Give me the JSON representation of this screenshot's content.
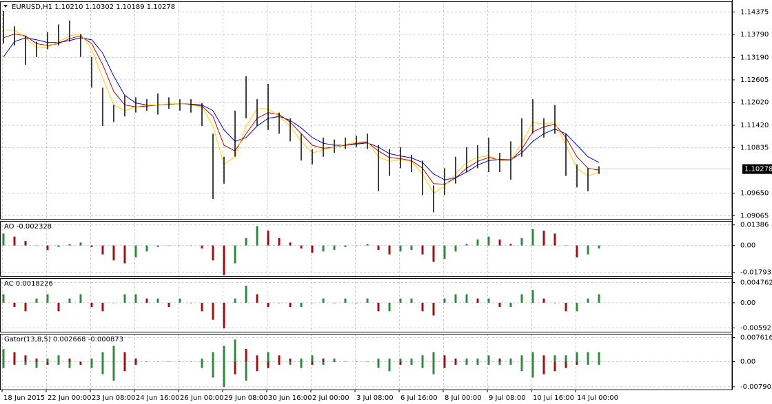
{
  "chart_data": [
    {
      "type": "ohlc",
      "title": "EURUSD,H1  1.10210 1.10302 1.10189 1.10278",
      "ylim": [
        1.0898,
        1.1465
      ],
      "yticks": [
        1.14375,
        {
          "value": 1.1379,
          "label": "1.13790"
        },
        {
          "value": 1.1319,
          "label": "1.13190"
        },
        1.12605,
        {
          "value": 1.1202,
          "label": "1.12020"
        },
        {
          "value": 1.1142,
          "label": "1.11420"
        },
        1.10835,
        {
          "value": 1.0965,
          "label": "1.09650"
        },
        1.09065
      ],
      "last": 1.10278,
      "grid": true,
      "color": "#000000",
      "categories": [
        "18 Jun 2015",
        "22 Jun 00:00",
        "23 Jun 08:00",
        "24 Jun 16:00",
        "26 Jun 00:00",
        "29 Jun 08:00",
        "30 Jun 16:00",
        "2 Jul 00:00",
        "3 Jul 08:00",
        "6 Jul 16:00",
        "8 Jul 00:00",
        "9 Jul 08:00",
        "10 Jul 16:00",
        "14 Jul 00:00"
      ],
      "high": [
        1.144,
        1.14,
        1.1375,
        1.136,
        1.1385,
        1.1405,
        1.1415,
        1.138,
        1.132,
        1.124,
        1.1195,
        1.122,
        1.1215,
        1.121,
        1.1225,
        1.1215,
        1.121,
        1.121,
        1.12,
        1.112,
        1.106,
        1.118,
        1.127,
        1.121,
        1.125,
        1.1175,
        1.116,
        1.112,
        1.108,
        1.111,
        1.1105,
        1.111,
        1.1115,
        1.112,
        1.109,
        1.108,
        1.1085,
        1.1065,
        1.105,
        1.0985,
        1.103,
        1.106,
        1.1085,
        1.109,
        1.111,
        1.107,
        1.11,
        1.116,
        1.121,
        1.116,
        1.1195,
        1.112,
        1.104,
        1.103,
        1.1035
      ],
      "low": [
        1.1355,
        1.135,
        1.13,
        1.132,
        1.134,
        1.135,
        1.136,
        1.132,
        1.124,
        1.114,
        1.115,
        1.1165,
        1.1175,
        1.118,
        1.117,
        1.1185,
        1.118,
        1.1175,
        1.114,
        1.095,
        1.099,
        1.106,
        1.116,
        1.114,
        1.113,
        1.112,
        1.11,
        1.105,
        1.104,
        1.106,
        1.107,
        1.108,
        1.1085,
        1.108,
        1.097,
        1.101,
        1.103,
        1.102,
        1.096,
        1.0915,
        1.096,
        1.099,
        1.102,
        1.103,
        1.102,
        1.102,
        1.1,
        1.106,
        1.112,
        1.111,
        1.112,
        1.101,
        1.098,
        1.097,
        1.1015
      ],
      "lines": [
        {
          "color": "#0000cc",
          "values": [
            1.132,
            1.136,
            1.137,
            1.1365,
            1.1358,
            1.1358,
            1.1363,
            1.137,
            1.1365,
            1.133,
            1.127,
            1.122,
            1.12,
            1.1195,
            1.1195,
            1.1197,
            1.1198,
            1.1197,
            1.1195,
            1.118,
            1.113,
            1.11,
            1.111,
            1.114,
            1.116,
            1.1165,
            1.1155,
            1.1135,
            1.111,
            1.1095,
            1.109,
            1.109,
            1.1093,
            1.1096,
            1.1085,
            1.1068,
            1.1062,
            1.1057,
            1.1045,
            1.1015,
            1.1,
            1.1005,
            1.102,
            1.1038,
            1.105,
            1.1053,
            1.1052,
            1.107,
            1.11,
            1.112,
            1.1132,
            1.112,
            1.109,
            1.106,
            1.1045
          ]
        },
        {
          "color": "#cc0000",
          "values": [
            1.137,
            1.138,
            1.1375,
            1.1355,
            1.135,
            1.1355,
            1.1368,
            1.1375,
            1.1355,
            1.13,
            1.123,
            1.1195,
            1.119,
            1.1192,
            1.1195,
            1.1197,
            1.1198,
            1.1196,
            1.1192,
            1.1165,
            1.109,
            1.1075,
            1.112,
            1.116,
            1.1175,
            1.117,
            1.115,
            1.112,
            1.109,
            1.1082,
            1.1085,
            1.109,
            1.1095,
            1.1098,
            1.1075,
            1.1058,
            1.1055,
            1.105,
            1.103,
            1.099,
            1.0988,
            1.1005,
            1.103,
            1.1048,
            1.1058,
            1.1052,
            1.105,
            1.108,
            1.1125,
            1.1138,
            1.1145,
            1.111,
            1.106,
            1.103,
            1.1025
          ]
        },
        {
          "color": "#ffd000",
          "values": [
            1.139,
            1.139,
            1.137,
            1.1345,
            1.1345,
            1.136,
            1.1375,
            1.138,
            1.134,
            1.1265,
            1.1195,
            1.118,
            1.119,
            1.1195,
            1.1195,
            1.1198,
            1.1198,
            1.1195,
            1.119,
            1.114,
            1.104,
            1.106,
            1.114,
            1.1185,
            1.1185,
            1.1165,
            1.114,
            1.11,
            1.107,
            1.1078,
            1.1085,
            1.1092,
            1.1098,
            1.11,
            1.106,
            1.1048,
            1.1052,
            1.1048,
            1.1015,
            1.0965,
            1.0985,
            1.1015,
            1.1045,
            1.1058,
            1.1063,
            1.105,
            1.105,
            1.1095,
            1.115,
            1.1145,
            1.115,
            1.109,
            1.103,
            1.101,
            1.102
          ]
        }
      ]
    },
    {
      "type": "histogram",
      "title": "AO -0.002328",
      "ylim": [
        -0.0205,
        0.0165
      ],
      "yticks": [
        0.01386,
        {
          "value": 0,
          "label": "0.00"
        },
        -0.01793
      ],
      "grid": true,
      "up_color": "#2e8b3e",
      "down_color": "#a01010",
      "values": [
        0.008,
        0.006,
        0.003,
        0.0,
        -0.003,
        -0.001,
        0.001,
        0.002,
        -0.001,
        -0.006,
        -0.01,
        -0.012,
        -0.008,
        -0.004,
        -0.001,
        0.0,
        0.0,
        0.0,
        -0.002,
        -0.01,
        -0.02,
        -0.012,
        0.005,
        0.013,
        0.01,
        0.005,
        0.002,
        -0.002,
        -0.005,
        -0.004,
        -0.003,
        -0.001,
        0.0,
        0.001,
        -0.003,
        -0.006,
        -0.004,
        -0.003,
        -0.006,
        -0.011,
        -0.009,
        -0.004,
        0.001,
        0.004,
        0.006,
        0.004,
        0.001,
        0.005,
        0.011,
        0.01,
        0.008,
        0.0,
        -0.008,
        -0.006,
        -0.002
      ]
    },
    {
      "type": "histogram",
      "title": "AC 0.0018226",
      "ylim": [
        -0.0068,
        0.0058
      ],
      "yticks": [
        0.004762,
        {
          "value": 0,
          "label": "0.00"
        },
        -0.00592
      ],
      "grid": true,
      "up_color": "#2e8b3e",
      "down_color": "#a01010",
      "values": [
        0.002,
        -0.001,
        -0.002,
        0.001,
        0.002,
        -0.002,
        0.001,
        0.002,
        -0.001,
        -0.002,
        0.0,
        0.002,
        0.002,
        0.001,
        0.001,
        -0.001,
        0.001,
        0.0,
        -0.002,
        -0.004,
        -0.006,
        0.001,
        0.004,
        0.002,
        -0.001,
        0.0,
        -0.001,
        -0.001,
        0.0,
        0.001,
        0.0,
        0.001,
        0.0,
        0.001,
        -0.002,
        -0.002,
        0.001,
        0.001,
        -0.002,
        -0.003,
        0.001,
        0.002,
        0.002,
        0.001,
        0.001,
        -0.001,
        -0.001,
        0.002,
        0.003,
        0.001,
        0.0,
        -0.002,
        -0.002,
        0.001,
        0.002
      ]
    },
    {
      "type": "gator",
      "title": "Gator(13,8,5) 0.002668 -0.000873",
      "ylim": [
        -0.0088,
        0.0088
      ],
      "yticks": [
        0.007616,
        {
          "value": 0,
          "label": "0.00"
        },
        -0.007905
      ],
      "grid": true,
      "up_color": "#2e8b3e",
      "down_color": "#a01010",
      "upper": [
        0.004,
        0.003,
        0.002,
        0.001,
        0.001,
        0.002,
        0.001,
        0.0,
        0.001,
        0.003,
        0.005,
        0.003,
        0.001,
        0.0,
        0.0,
        0.0,
        0.0,
        0.0,
        0.001,
        0.003,
        0.005,
        0.007,
        0.004,
        0.002,
        0.003,
        0.002,
        0.001,
        0.001,
        0.002,
        0.001,
        0.001,
        0.0,
        0.0,
        0.0,
        0.001,
        0.001,
        0.001,
        0.001,
        0.002,
        0.003,
        0.002,
        0.001,
        0.001,
        0.001,
        0.002,
        0.001,
        0.001,
        0.002,
        0.003,
        0.002,
        0.002,
        0.002,
        0.003,
        0.003,
        0.003
      ],
      "lower": [
        -0.002,
        -0.001,
        -0.001,
        -0.002,
        -0.001,
        -0.001,
        -0.002,
        -0.001,
        -0.002,
        -0.004,
        -0.006,
        -0.003,
        -0.001,
        0,
        0,
        0,
        0,
        0,
        -0.002,
        -0.005,
        -0.008,
        -0.004,
        -0.006,
        -0.003,
        -0.002,
        -0.001,
        -0.001,
        -0.002,
        -0.001,
        -0.001,
        0,
        0,
        0,
        0,
        -0.002,
        -0.003,
        -0.001,
        -0.001,
        -0.002,
        -0.004,
        -0.002,
        -0.001,
        -0.001,
        -0.001,
        -0.001,
        -0.001,
        -0.001,
        -0.003,
        -0.005,
        -0.004,
        -0.003,
        -0.002,
        -0.001,
        -0.001,
        -0.001
      ]
    }
  ]
}
